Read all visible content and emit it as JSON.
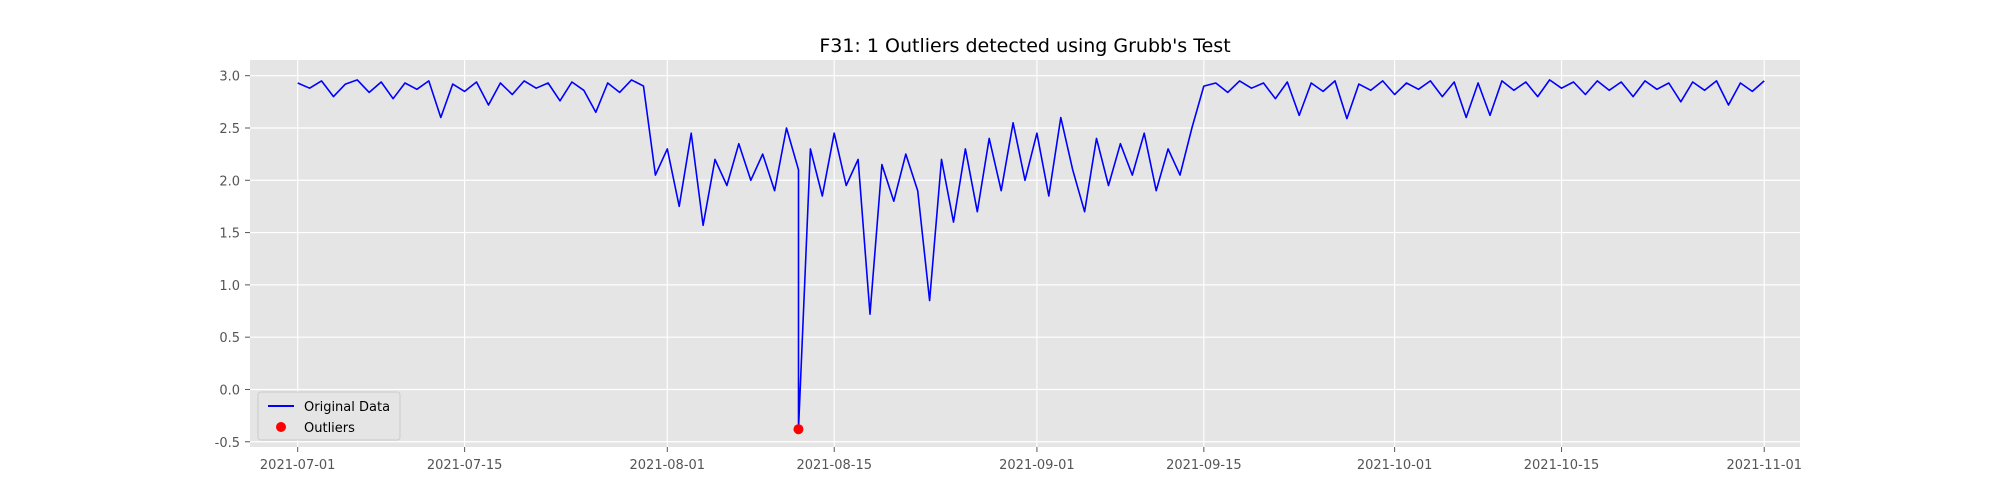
{
  "chart_data": {
    "type": "line",
    "title": "F31: 1 Outliers detected using Grubb's Test",
    "xlabel": "",
    "ylabel": "",
    "x_range": [
      "2021-06-27",
      "2021-11-04"
    ],
    "ylim": [
      -0.55,
      3.15
    ],
    "x_ticks": [
      "2021-07-01",
      "2021-07-15",
      "2021-08-01",
      "2021-08-15",
      "2021-09-01",
      "2021-09-15",
      "2021-10-01",
      "2021-10-15",
      "2021-11-01"
    ],
    "y_ticks": [
      -0.5,
      0.0,
      0.5,
      1.0,
      1.5,
      2.0,
      2.5,
      3.0
    ],
    "grid": true,
    "legend_position": "bottom-left",
    "series": [
      {
        "name": "Original Data",
        "color": "#0000ff",
        "marker": "line",
        "points": [
          [
            "2021-07-01",
            2.93
          ],
          [
            "2021-07-02",
            2.88
          ],
          [
            "2021-07-03",
            2.95
          ],
          [
            "2021-07-04",
            2.8
          ],
          [
            "2021-07-05",
            2.92
          ],
          [
            "2021-07-06",
            2.96
          ],
          [
            "2021-07-07",
            2.84
          ],
          [
            "2021-07-08",
            2.94
          ],
          [
            "2021-07-09",
            2.78
          ],
          [
            "2021-07-10",
            2.93
          ],
          [
            "2021-07-11",
            2.87
          ],
          [
            "2021-07-12",
            2.95
          ],
          [
            "2021-07-13",
            2.6
          ],
          [
            "2021-07-14",
            2.92
          ],
          [
            "2021-07-15",
            2.85
          ],
          [
            "2021-07-16",
            2.94
          ],
          [
            "2021-07-17",
            2.72
          ],
          [
            "2021-07-18",
            2.93
          ],
          [
            "2021-07-19",
            2.82
          ],
          [
            "2021-07-20",
            2.95
          ],
          [
            "2021-07-21",
            2.88
          ],
          [
            "2021-07-22",
            2.93
          ],
          [
            "2021-07-23",
            2.76
          ],
          [
            "2021-07-24",
            2.94
          ],
          [
            "2021-07-25",
            2.86
          ],
          [
            "2021-07-26",
            2.65
          ],
          [
            "2021-07-27",
            2.93
          ],
          [
            "2021-07-28",
            2.84
          ],
          [
            "2021-07-29",
            2.96
          ],
          [
            "2021-07-30",
            2.9
          ],
          [
            "2021-07-31",
            2.05
          ],
          [
            "2021-08-01",
            2.3
          ],
          [
            "2021-08-02",
            1.75
          ],
          [
            "2021-08-03",
            2.45
          ],
          [
            "2021-08-04",
            1.57
          ],
          [
            "2021-08-05",
            2.2
          ],
          [
            "2021-08-06",
            1.95
          ],
          [
            "2021-08-07",
            2.35
          ],
          [
            "2021-08-08",
            2.0
          ],
          [
            "2021-08-09",
            2.25
          ],
          [
            "2021-08-10",
            1.9
          ],
          [
            "2021-08-11",
            2.5
          ],
          [
            "2021-08-12",
            2.1
          ],
          [
            "2021-08-12",
            -0.38
          ],
          [
            "2021-08-13",
            2.3
          ],
          [
            "2021-08-14",
            1.85
          ],
          [
            "2021-08-15",
            2.45
          ],
          [
            "2021-08-16",
            1.95
          ],
          [
            "2021-08-17",
            2.2
          ],
          [
            "2021-08-18",
            0.72
          ],
          [
            "2021-08-19",
            2.15
          ],
          [
            "2021-08-20",
            1.8
          ],
          [
            "2021-08-21",
            2.25
          ],
          [
            "2021-08-22",
            1.9
          ],
          [
            "2021-08-23",
            0.85
          ],
          [
            "2021-08-24",
            2.2
          ],
          [
            "2021-08-25",
            1.6
          ],
          [
            "2021-08-26",
            2.3
          ],
          [
            "2021-08-27",
            1.7
          ],
          [
            "2021-08-28",
            2.4
          ],
          [
            "2021-08-29",
            1.9
          ],
          [
            "2021-08-30",
            2.55
          ],
          [
            "2021-08-31",
            2.0
          ],
          [
            "2021-09-01",
            2.45
          ],
          [
            "2021-09-02",
            1.85
          ],
          [
            "2021-09-03",
            2.6
          ],
          [
            "2021-09-04",
            2.1
          ],
          [
            "2021-09-05",
            1.7
          ],
          [
            "2021-09-06",
            2.4
          ],
          [
            "2021-09-07",
            1.95
          ],
          [
            "2021-09-08",
            2.35
          ],
          [
            "2021-09-09",
            2.05
          ],
          [
            "2021-09-10",
            2.45
          ],
          [
            "2021-09-11",
            1.9
          ],
          [
            "2021-09-12",
            2.3
          ],
          [
            "2021-09-13",
            2.05
          ],
          [
            "2021-09-14",
            2.5
          ],
          [
            "2021-09-15",
            2.9
          ],
          [
            "2021-09-16",
            2.93
          ],
          [
            "2021-09-17",
            2.84
          ],
          [
            "2021-09-18",
            2.95
          ],
          [
            "2021-09-19",
            2.88
          ],
          [
            "2021-09-20",
            2.93
          ],
          [
            "2021-09-21",
            2.78
          ],
          [
            "2021-09-22",
            2.94
          ],
          [
            "2021-09-23",
            2.62
          ],
          [
            "2021-09-24",
            2.93
          ],
          [
            "2021-09-25",
            2.85
          ],
          [
            "2021-09-26",
            2.95
          ],
          [
            "2021-09-27",
            2.59
          ],
          [
            "2021-09-28",
            2.92
          ],
          [
            "2021-09-29",
            2.86
          ],
          [
            "2021-09-30",
            2.95
          ],
          [
            "2021-10-01",
            2.82
          ],
          [
            "2021-10-02",
            2.93
          ],
          [
            "2021-10-03",
            2.87
          ],
          [
            "2021-10-04",
            2.95
          ],
          [
            "2021-10-05",
            2.8
          ],
          [
            "2021-10-06",
            2.94
          ],
          [
            "2021-10-07",
            2.6
          ],
          [
            "2021-10-08",
            2.93
          ],
          [
            "2021-10-09",
            2.62
          ],
          [
            "2021-10-10",
            2.95
          ],
          [
            "2021-10-11",
            2.86
          ],
          [
            "2021-10-12",
            2.94
          ],
          [
            "2021-10-13",
            2.8
          ],
          [
            "2021-10-14",
            2.96
          ],
          [
            "2021-10-15",
            2.88
          ],
          [
            "2021-10-16",
            2.94
          ],
          [
            "2021-10-17",
            2.82
          ],
          [
            "2021-10-18",
            2.95
          ],
          [
            "2021-10-19",
            2.86
          ],
          [
            "2021-10-20",
            2.94
          ],
          [
            "2021-10-21",
            2.8
          ],
          [
            "2021-10-22",
            2.95
          ],
          [
            "2021-10-23",
            2.87
          ],
          [
            "2021-10-24",
            2.93
          ],
          [
            "2021-10-25",
            2.75
          ],
          [
            "2021-10-26",
            2.94
          ],
          [
            "2021-10-27",
            2.86
          ],
          [
            "2021-10-28",
            2.95
          ],
          [
            "2021-10-29",
            2.72
          ],
          [
            "2021-10-30",
            2.93
          ],
          [
            "2021-10-31",
            2.85
          ],
          [
            "2021-11-01",
            2.95
          ]
        ]
      },
      {
        "name": "Outliers",
        "color": "#ff0000",
        "marker": "point",
        "points": [
          [
            "2021-08-12",
            -0.38
          ]
        ]
      }
    ]
  }
}
